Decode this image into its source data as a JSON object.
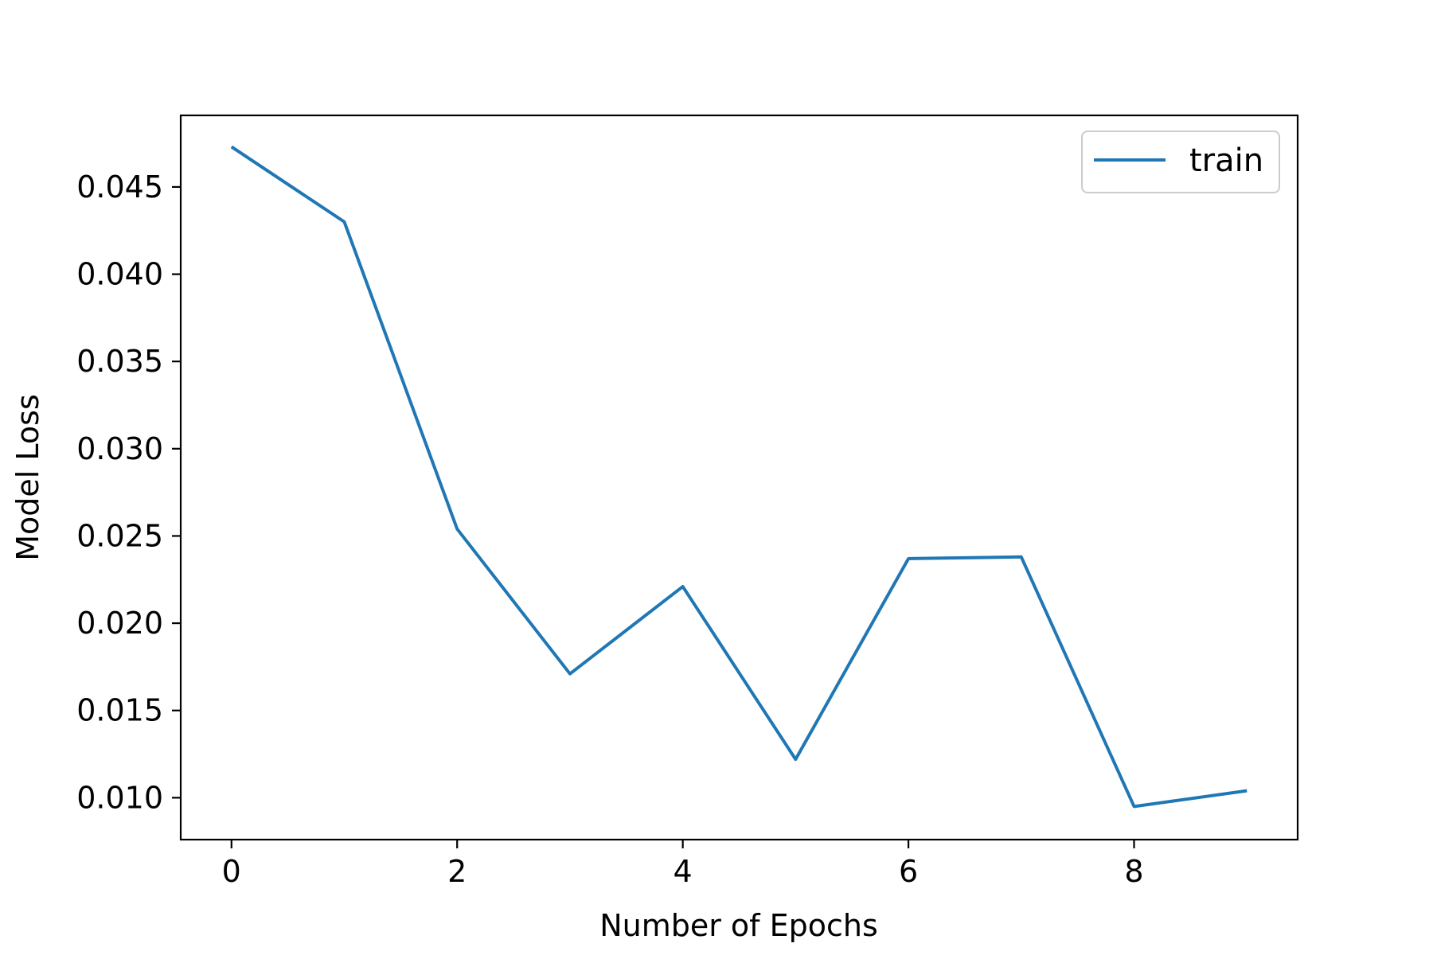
{
  "chart_data": {
    "type": "line",
    "title": "",
    "xlabel": "Number of Epochs",
    "ylabel": "Model Loss",
    "xlim": [
      -0.45,
      9.45
    ],
    "ylim": [
      0.0076,
      0.0491
    ],
    "xticks": [
      0,
      2,
      4,
      6,
      8
    ],
    "xtick_labels": [
      "0",
      "2",
      "4",
      "6",
      "8"
    ],
    "yticks": [
      0.01,
      0.015,
      0.02,
      0.025,
      0.03,
      0.035,
      0.04,
      0.045
    ],
    "ytick_labels": [
      "0.010",
      "0.015",
      "0.020",
      "0.025",
      "0.030",
      "0.035",
      "0.040",
      "0.045"
    ],
    "grid": false,
    "legend_position": "top-right",
    "series": [
      {
        "name": "train",
        "color": "#1f77b4",
        "x": [
          0,
          1,
          2,
          3,
          4,
          5,
          6,
          7,
          8,
          9
        ],
        "y": [
          0.0473,
          0.043,
          0.0254,
          0.0171,
          0.0221,
          0.0122,
          0.0237,
          0.0238,
          0.0095,
          0.0104
        ]
      }
    ]
  }
}
